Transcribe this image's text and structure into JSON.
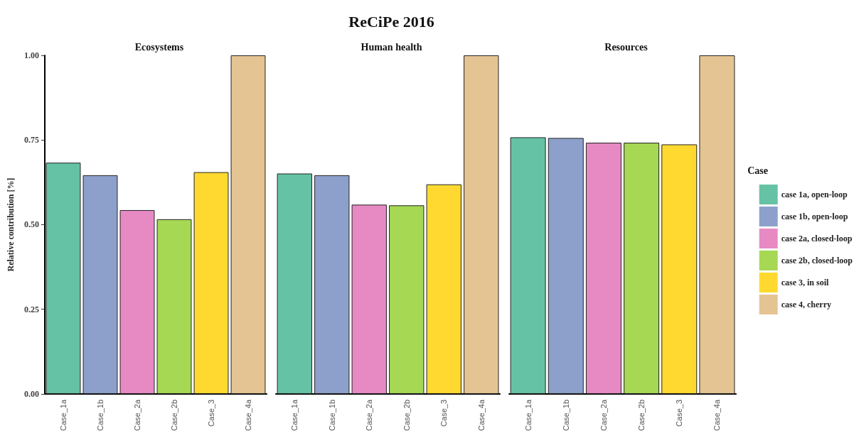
{
  "chart_data": [
    {
      "type": "bar",
      "subtitle": "Ecosystems",
      "ylabel": "Relative contribution [%]",
      "categories": [
        "Case_1a",
        "Case_1b",
        "Case_2a",
        "Case_2b",
        "Case_3",
        "Case_4a"
      ],
      "stacked": true,
      "ylim": [
        0,
        1
      ],
      "yticks": [
        {
          "value": 0,
          "label": "0.00"
        },
        {
          "value": 0.25,
          "label": "0.25"
        },
        {
          "value": 0.5,
          "label": "0.50"
        },
        {
          "value": 0.75,
          "label": "0.75"
        },
        {
          "value": 1,
          "label": "1.00"
        }
      ],
      "grid": false,
      "series": [
        {
          "color": "#66c2a5",
          "values": [
            0.683,
            null,
            null,
            null,
            null,
            null
          ]
        },
        {
          "color": "#8da0cb",
          "values": [
            null,
            0.646,
            null,
            null,
            null,
            null
          ]
        },
        {
          "color": "#e78ac3",
          "values": [
            null,
            null,
            0.543,
            null,
            null,
            null
          ]
        },
        {
          "color": "#a6d854",
          "values": [
            null,
            null,
            null,
            0.516,
            null,
            null
          ]
        },
        {
          "color": "#ffd92f",
          "values": [
            null,
            null,
            null,
            null,
            0.655,
            null
          ]
        },
        {
          "color": "#e5c494",
          "values": [
            null,
            null,
            null,
            null,
            null,
            1
          ]
        }
      ]
    },
    {
      "type": "bar",
      "title": "ReCiPe 2016",
      "subtitle": "Human health",
      "categories": [
        "Case_1a",
        "Case_1b",
        "Case_2a",
        "Case_2b",
        "Case_3",
        "Case_4a"
      ],
      "stacked": true,
      "ylim": [
        0,
        1
      ],
      "tick_labels": "x",
      "grid": false,
      "series": [
        {
          "color": "#66c2a5",
          "values": [
            0.651,
            null,
            null,
            null,
            null,
            null
          ]
        },
        {
          "color": "#8da0cb",
          "values": [
            null,
            0.646,
            null,
            null,
            null,
            null
          ]
        },
        {
          "color": "#e78ac3",
          "values": [
            null,
            null,
            0.559,
            null,
            null,
            null
          ]
        },
        {
          "color": "#a6d854",
          "values": [
            null,
            null,
            null,
            0.557,
            null,
            null
          ]
        },
        {
          "color": "#ffd92f",
          "values": [
            null,
            null,
            null,
            null,
            0.619,
            null
          ]
        },
        {
          "color": "#e5c494",
          "values": [
            null,
            null,
            null,
            null,
            null,
            1
          ]
        }
      ]
    },
    {
      "type": "bar",
      "subtitle": "Resources",
      "categories": [
        "Case_1a",
        "Case_1b",
        "Case_2a",
        "Case_2b",
        "Case_3",
        "Case_4a"
      ],
      "stacked": true,
      "ylim": [
        0,
        1
      ],
      "tick_labels": "x",
      "grid": false,
      "legend": "right",
      "legend_title": "Case",
      "series": [
        {
          "name": "case 1a, open-loop",
          "color": "#66c2a5",
          "values": [
            0.758,
            null,
            null,
            null,
            null,
            null
          ]
        },
        {
          "name": "case 1b, open-loop",
          "color": "#8da0cb",
          "values": [
            null,
            0.756,
            null,
            null,
            null,
            null
          ]
        },
        {
          "name": "case 2a, closed-loop",
          "color": "#e78ac3",
          "values": [
            null,
            null,
            0.742,
            null,
            null,
            null
          ]
        },
        {
          "name": "case 2b, closed-loop",
          "color": "#a6d854",
          "values": [
            null,
            null,
            null,
            0.742,
            null,
            null
          ]
        },
        {
          "name": "case 3, in soil",
          "color": "#ffd92f",
          "values": [
            null,
            null,
            null,
            null,
            0.737,
            null
          ]
        },
        {
          "name": "case 4, cherry",
          "color": "#e5c494",
          "values": [
            null,
            null,
            null,
            null,
            null,
            1
          ]
        }
      ]
    }
  ]
}
